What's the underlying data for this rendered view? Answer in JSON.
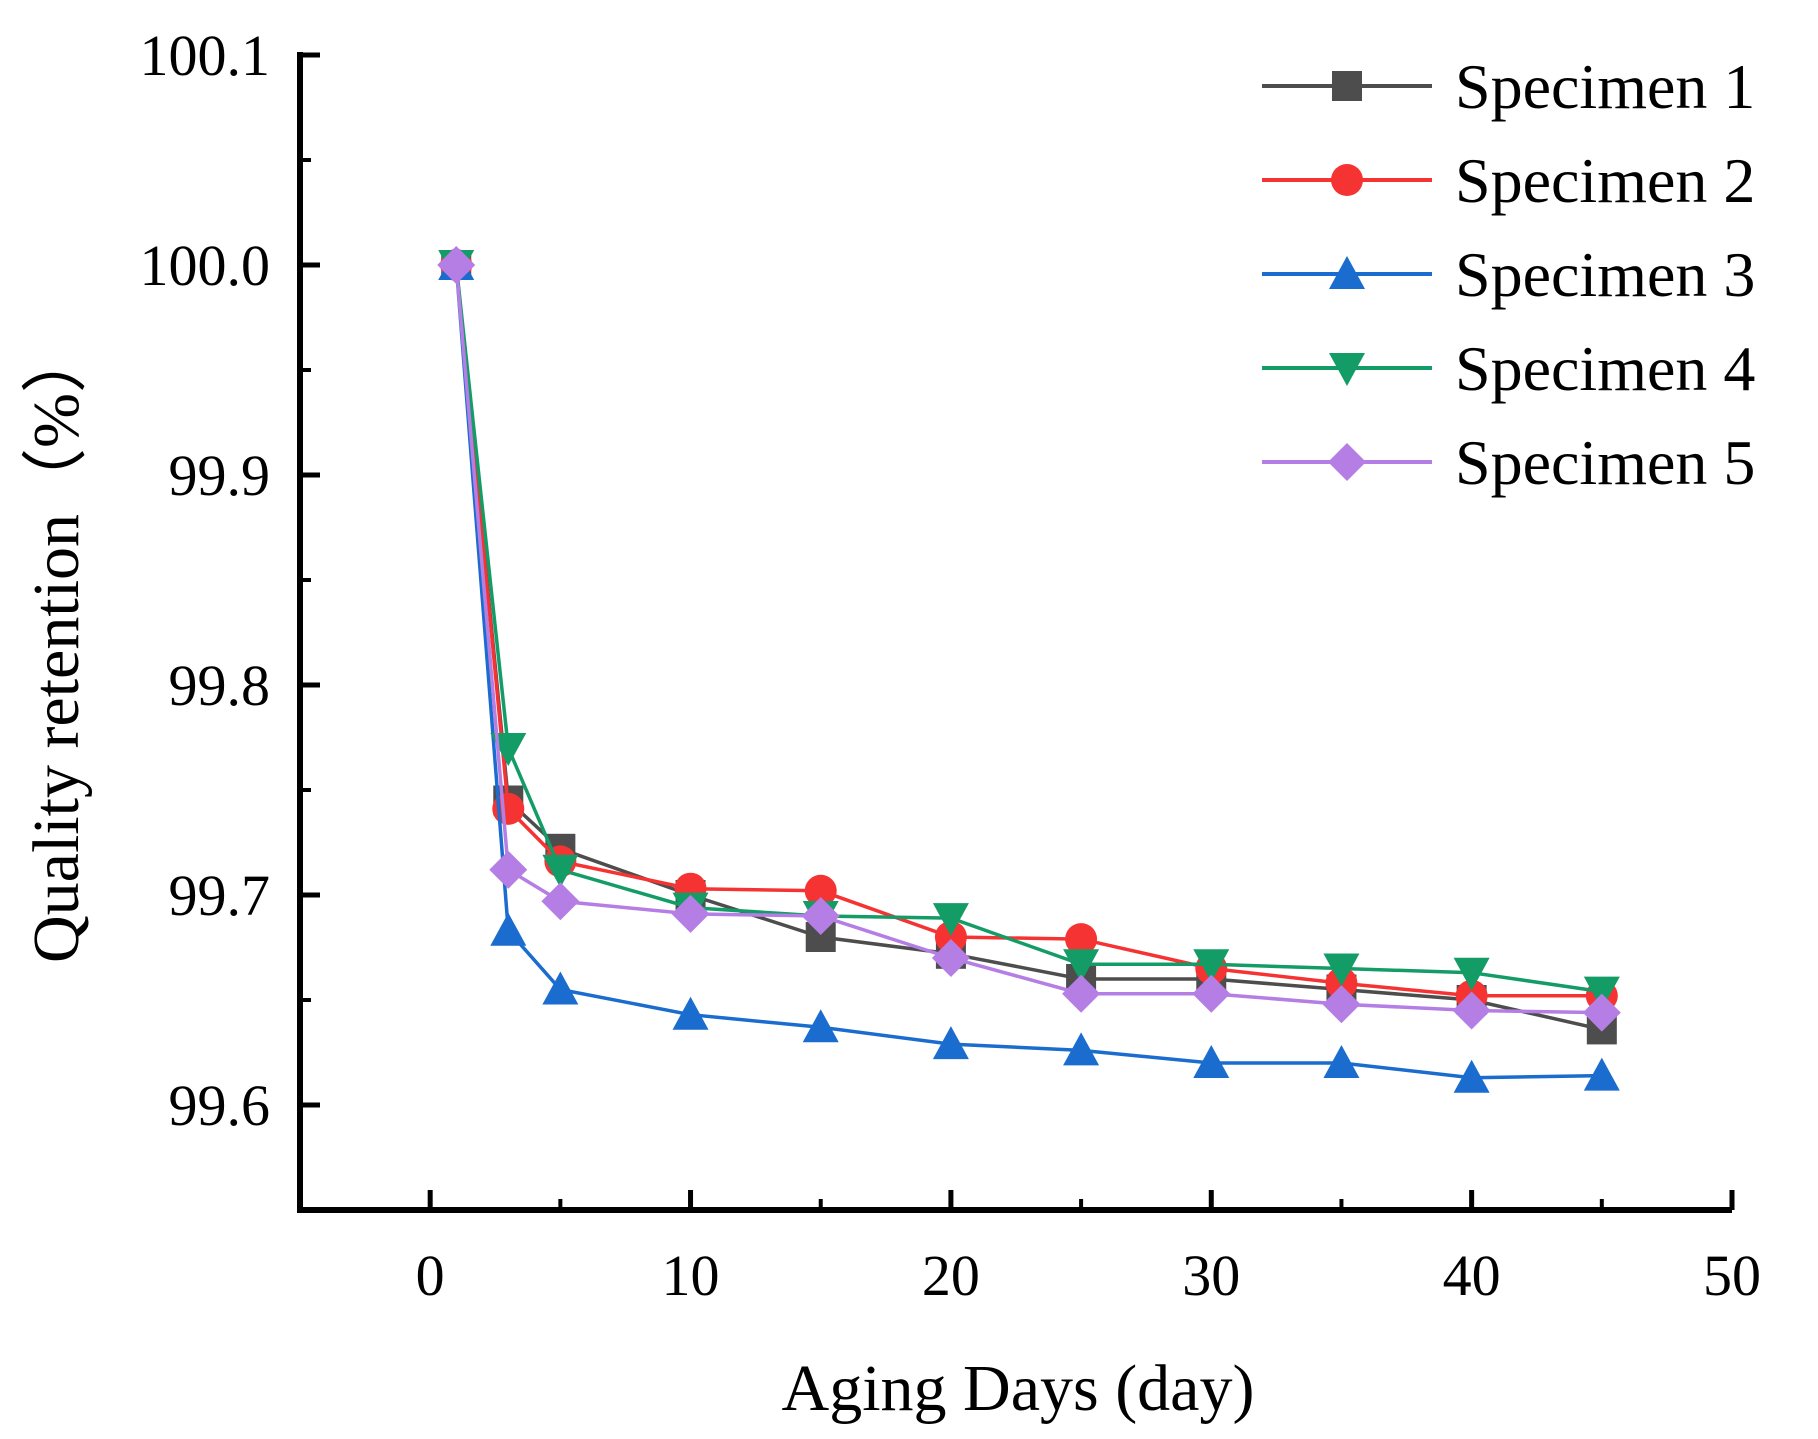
{
  "chart_data": {
    "type": "line",
    "title": "",
    "xlabel": "Aging Days (day)",
    "ylabel": "Quality retention（%）",
    "xlim": [
      -5,
      50
    ],
    "ylim": [
      99.55,
      100.1
    ],
    "xticks": [
      0,
      10,
      20,
      30,
      40,
      50
    ],
    "xtick_labels": [
      "0",
      "10",
      "20",
      "30",
      "40",
      "50"
    ],
    "yticks": [
      99.6,
      99.7,
      99.8,
      99.9,
      100.0,
      100.1
    ],
    "ytick_labels": [
      "99.6",
      "99.7",
      "99.8",
      "99.9",
      "100.0",
      "100.1"
    ],
    "grid": false,
    "legend_position": "top-right",
    "series": [
      {
        "name": "Specimen 1",
        "color": "#4d4d4d",
        "marker": "square",
        "x": [
          1,
          3,
          5,
          10,
          15,
          20,
          25,
          30,
          35,
          40,
          45
        ],
        "values": [
          100.0,
          99.745,
          99.722,
          99.7,
          99.68,
          99.672,
          99.66,
          99.66,
          99.655,
          99.65,
          99.636
        ]
      },
      {
        "name": "Specimen 2",
        "color": "#f53333",
        "marker": "circle",
        "x": [
          1,
          3,
          5,
          10,
          15,
          20,
          25,
          30,
          35,
          40,
          45
        ],
        "values": [
          100.0,
          99.741,
          99.716,
          99.703,
          99.702,
          99.68,
          99.679,
          99.665,
          99.658,
          99.652,
          99.652
        ]
      },
      {
        "name": "Specimen 3",
        "color": "#1a6ccf",
        "marker": "triangle-up",
        "x": [
          1,
          3,
          5,
          10,
          15,
          20,
          25,
          30,
          35,
          40,
          45
        ],
        "values": [
          100.0,
          99.683,
          99.655,
          99.643,
          99.637,
          99.629,
          99.626,
          99.62,
          99.62,
          99.613,
          99.614
        ]
      },
      {
        "name": "Specimen 4",
        "color": "#149c67",
        "marker": "triangle-down",
        "x": [
          1,
          3,
          5,
          10,
          15,
          20,
          25,
          30,
          35,
          40,
          45
        ],
        "values": [
          100.0,
          99.77,
          99.712,
          99.694,
          99.69,
          99.689,
          99.667,
          99.667,
          99.665,
          99.663,
          99.654
        ]
      },
      {
        "name": "Specimen 5",
        "color": "#b57ee4",
        "marker": "diamond",
        "x": [
          1,
          3,
          5,
          10,
          15,
          20,
          25,
          30,
          35,
          40,
          45
        ],
        "values": [
          100.0,
          99.712,
          99.697,
          99.691,
          99.69,
          99.67,
          99.653,
          99.653,
          99.648,
          99.645,
          99.644
        ]
      }
    ]
  }
}
